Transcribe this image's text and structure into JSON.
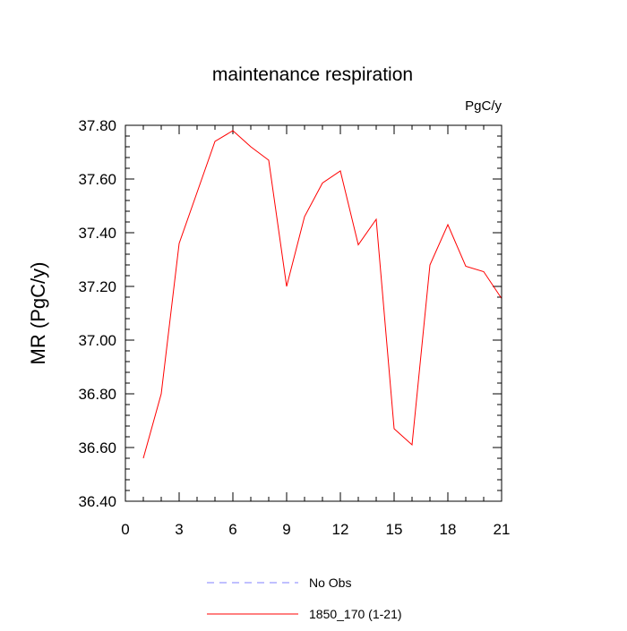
{
  "chart_data": {
    "type": "line",
    "title": "maintenance respiration",
    "units_label": "PgC/y",
    "xlabel": "",
    "ylabel": "MR  (PgC/y)",
    "xlim": [
      0,
      21
    ],
    "ylim": [
      36.4,
      37.8
    ],
    "x_ticks": [
      0,
      3,
      6,
      9,
      12,
      15,
      18,
      21
    ],
    "x_tick_labels": [
      "0",
      "3",
      "6",
      "9",
      "12",
      "15",
      "18",
      "21"
    ],
    "y_ticks": [
      36.4,
      36.6,
      36.8,
      37.0,
      37.2,
      37.4,
      37.6,
      37.8
    ],
    "y_tick_labels": [
      "36.40",
      "36.60",
      "36.80",
      "37.00",
      "37.20",
      "37.40",
      "37.60",
      "37.80"
    ],
    "grid": false,
    "legend_position": "bottom-center",
    "series": [
      {
        "name": "1850_170 (1-21)",
        "color": "#ff0000",
        "style": "solid",
        "x": [
          1,
          2,
          3,
          4,
          5,
          6,
          7,
          8,
          9,
          10,
          11,
          12,
          13,
          14,
          15,
          16,
          17,
          18,
          19,
          20,
          21
        ],
        "y": [
          36.56,
          36.8,
          37.36,
          37.55,
          37.74,
          37.78,
          37.72,
          37.67,
          37.2,
          37.46,
          37.585,
          37.63,
          37.355,
          37.45,
          36.67,
          36.61,
          37.28,
          37.43,
          37.275,
          37.255,
          37.155
        ]
      },
      {
        "name": "No Obs",
        "color": "#8080ff",
        "style": "dashed",
        "x": [],
        "y": []
      }
    ]
  }
}
